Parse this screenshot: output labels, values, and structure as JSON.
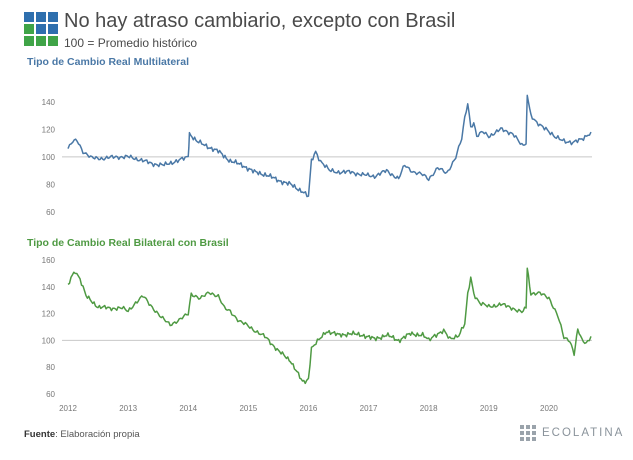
{
  "header": {
    "title": "No hay atraso cambiario, excepto con Brasil",
    "subtitle": "100 = Promedio histórico"
  },
  "colors": {
    "logo_blue": "#2e6fae",
    "logo_green": "#3fa447",
    "series1": "#4a78a6",
    "series2": "#4f9a43",
    "refline": "#c8c8c8",
    "ticks": "#777777"
  },
  "footer": {
    "label": "Fuente",
    "text": ": Elaboración propia"
  },
  "brand": {
    "name": "ECOLATINA",
    "icon": "grid-logo-icon"
  },
  "chart_data": [
    {
      "type": "line",
      "title": "Tipo de Cambio Real Multilateral",
      "ylim": [
        60,
        150
      ],
      "yticks": [
        60,
        80,
        100,
        120,
        140
      ],
      "reference_line": 100,
      "x": [
        2012.0,
        2012.08,
        2012.15,
        2012.25,
        2012.4,
        2012.6,
        2012.8,
        2013.0,
        2013.2,
        2013.4,
        2013.6,
        2013.8,
        2013.95,
        2014.0,
        2014.02,
        2014.15,
        2014.3,
        2014.5,
        2014.7,
        2014.9,
        2015.1,
        2015.3,
        2015.5,
        2015.7,
        2015.9,
        2015.95,
        2016.0,
        2016.05,
        2016.12,
        2016.2,
        2016.35,
        2016.5,
        2016.7,
        2016.9,
        2017.1,
        2017.3,
        2017.5,
        2017.6,
        2017.75,
        2017.9,
        2018.0,
        2018.15,
        2018.3,
        2018.45,
        2018.55,
        2018.6,
        2018.65,
        2018.7,
        2018.75,
        2018.8,
        2018.9,
        2019.0,
        2019.2,
        2019.4,
        2019.55,
        2019.62,
        2019.64,
        2019.7,
        2019.8,
        2019.95,
        2020.1,
        2020.25,
        2020.4,
        2020.55,
        2020.7
      ],
      "series": [
        {
          "name": "Tipo de Cambio Real Multilateral",
          "values": [
            106,
            111,
            112,
            104,
            99,
            99,
            100,
            100,
            98,
            95,
            94,
            97,
            99,
            100,
            117,
            111,
            108,
            104,
            97,
            94,
            89,
            87,
            83,
            80,
            75,
            73,
            71,
            97,
            104,
            97,
            90,
            89,
            89,
            87,
            86,
            90,
            84,
            94,
            89,
            87,
            84,
            92,
            88,
            100,
            113,
            128,
            139,
            122,
            125,
            115,
            118,
            115,
            120,
            117,
            108,
            110,
            146,
            130,
            124,
            121,
            114,
            112,
            110,
            113,
            118
          ]
        }
      ]
    },
    {
      "type": "line",
      "title": "Tipo de Cambio Real Bilateral con Brasil",
      "ylim": [
        60,
        160
      ],
      "yticks": [
        60,
        80,
        100,
        120,
        140,
        160
      ],
      "reference_line": 100,
      "x": [
        2012.0,
        2012.05,
        2012.12,
        2012.2,
        2012.3,
        2012.5,
        2012.7,
        2012.9,
        2013.0,
        2013.1,
        2013.25,
        2013.4,
        2013.55,
        2013.7,
        2013.85,
        2014.0,
        2014.05,
        2014.2,
        2014.35,
        2014.5,
        2014.6,
        2014.7,
        2014.85,
        2015.0,
        2015.15,
        2015.3,
        2015.5,
        2015.7,
        2015.9,
        2015.97,
        2016.0,
        2016.05,
        2016.15,
        2016.3,
        2016.5,
        2016.7,
        2016.9,
        2017.1,
        2017.3,
        2017.5,
        2017.7,
        2017.9,
        2018.0,
        2018.1,
        2018.25,
        2018.35,
        2018.5,
        2018.6,
        2018.65,
        2018.7,
        2018.75,
        2018.85,
        2019.0,
        2019.2,
        2019.4,
        2019.55,
        2019.62,
        2019.64,
        2019.7,
        2019.85,
        2020.0,
        2020.15,
        2020.25,
        2020.35,
        2020.42,
        2020.48,
        2020.55,
        2020.62,
        2020.7
      ],
      "series": [
        {
          "name": "Tipo de Cambio Real Bilateral con Brasil",
          "values": [
            140,
            147,
            152,
            146,
            133,
            125,
            124,
            124,
            122,
            127,
            133,
            125,
            117,
            112,
            115,
            120,
            135,
            131,
            136,
            133,
            124,
            122,
            114,
            111,
            106,
            102,
            92,
            85,
            69,
            70,
            72,
            94,
            99,
            107,
            104,
            105,
            104,
            101,
            104,
            100,
            105,
            104,
            100,
            104,
            107,
            101,
            104,
            112,
            134,
            147,
            135,
            128,
            125,
            127,
            124,
            121,
            124,
            154,
            135,
            135,
            132,
            118,
            102,
            100,
            90,
            108,
            100,
            98,
            103
          ]
        }
      ]
    }
  ],
  "x_axis": {
    "ticks": [
      2012,
      2013,
      2014,
      2015,
      2016,
      2017,
      2018,
      2019,
      2020
    ],
    "xlim": [
      2011.9,
      2020.85
    ]
  }
}
